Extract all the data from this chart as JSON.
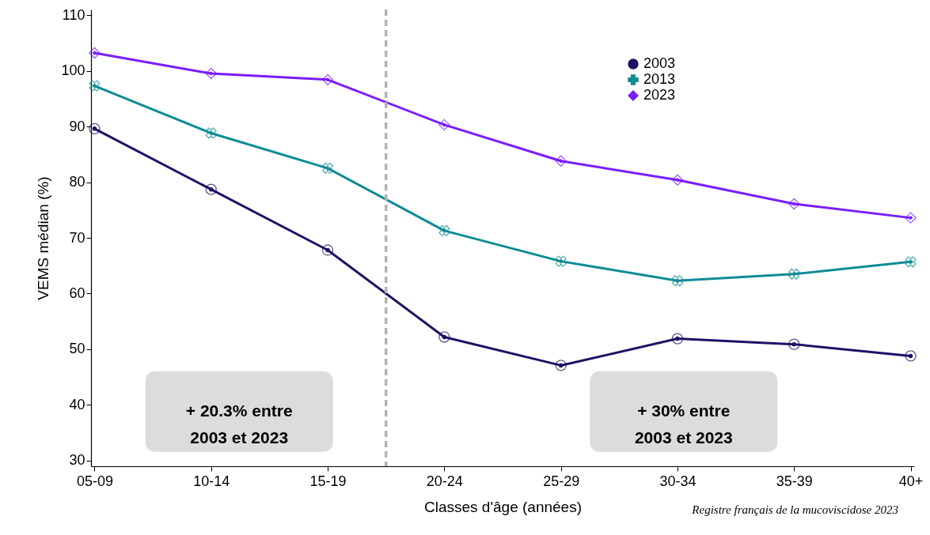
{
  "chart_data": {
    "type": "line",
    "xlabel": "Classes d'âge (années)",
    "ylabel": "VEMS médian (%)",
    "categories": [
      "05-09",
      "10-14",
      "15-19",
      "20-24",
      "25-29",
      "30-34",
      "35-39",
      "40+"
    ],
    "series": [
      {
        "name": "2003",
        "color": "#1f1166",
        "marker": "circle",
        "values": [
          89.6,
          78.7,
          67.8,
          52.2,
          47.1,
          51.9,
          50.9,
          48.8
        ]
      },
      {
        "name": "2013",
        "color": "#0e8c96",
        "marker": "cross",
        "values": [
          97.3,
          88.8,
          82.5,
          71.3,
          65.8,
          62.3,
          63.5,
          65.7
        ]
      },
      {
        "name": "2023",
        "color": "#7b1cff",
        "marker": "diamond",
        "values": [
          103.2,
          99.5,
          98.4,
          90.3,
          83.8,
          80.4,
          76.1,
          73.6
        ]
      }
    ],
    "ylim": [
      29,
      111
    ],
    "yticks": [
      30,
      40,
      50,
      60,
      70,
      80,
      90,
      100,
      110
    ],
    "grid": false,
    "legend": "top right",
    "annotations": [
      "+ 20.3% entre\n2003 et 2023",
      "+ 30% entre\n2003 et 2023",
      "Registre français de la mucoviscidose 2023"
    ]
  }
}
